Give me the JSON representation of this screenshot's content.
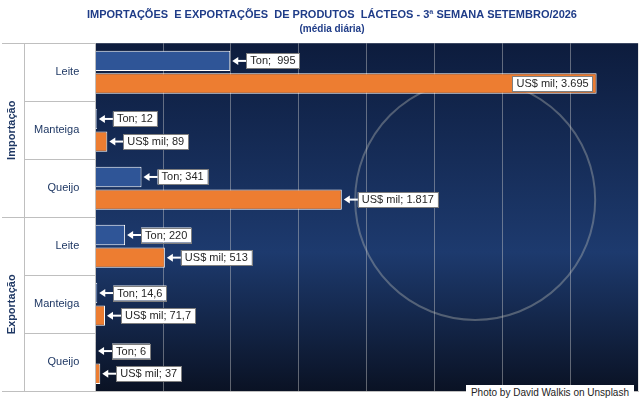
{
  "chart_data": {
    "type": "bar",
    "orientation": "horizontal",
    "title": "IMPORTAÇÕES  E EXPORTAÇÕES  DE PRODUTOS  LÁCTEOS - 3ª SEMANA SETEMBRO/2026",
    "subtitle": "(média diária)",
    "credit": "Photo by David Walkis on Unsplash",
    "categories": [
      "Leite",
      "Manteiga",
      "Queijo",
      "Leite",
      "Manteiga",
      "Queijo"
    ],
    "category_groups": [
      {
        "name": "Importação",
        "categories": [
          "Leite",
          "Manteiga",
          "Queijo"
        ]
      },
      {
        "name": "Exportação",
        "categories": [
          "Leite",
          "Manteiga",
          "Queijo"
        ]
      }
    ],
    "series": [
      {
        "name": "Ton",
        "color": "#2f5597",
        "values": [
          995,
          12,
          341,
          220,
          14.6,
          6
        ],
        "value_labels": [
          "Ton;  995",
          "Ton; 12",
          "Ton; 341",
          "Ton; 220",
          "Ton; 14,6",
          "Ton; 6"
        ]
      },
      {
        "name": "US$ mil",
        "color": "#ed7d31",
        "values": [
          3695,
          89,
          1817,
          513,
          71.7,
          37
        ],
        "value_labels": [
          "US$ mil; 3.695",
          "US$ mil; 89",
          "US$ mil; 1.817",
          "US$ mil; 513",
          "US$ mil; 71,7",
          "US$ mil; 37"
        ]
      }
    ],
    "xlim": [
      0,
      4000
    ],
    "xticks": [
      0,
      500,
      1000,
      1500,
      2000,
      2500,
      3000,
      3500,
      4000
    ],
    "grid": true,
    "data_labels": true,
    "tick_labels": "y"
  }
}
